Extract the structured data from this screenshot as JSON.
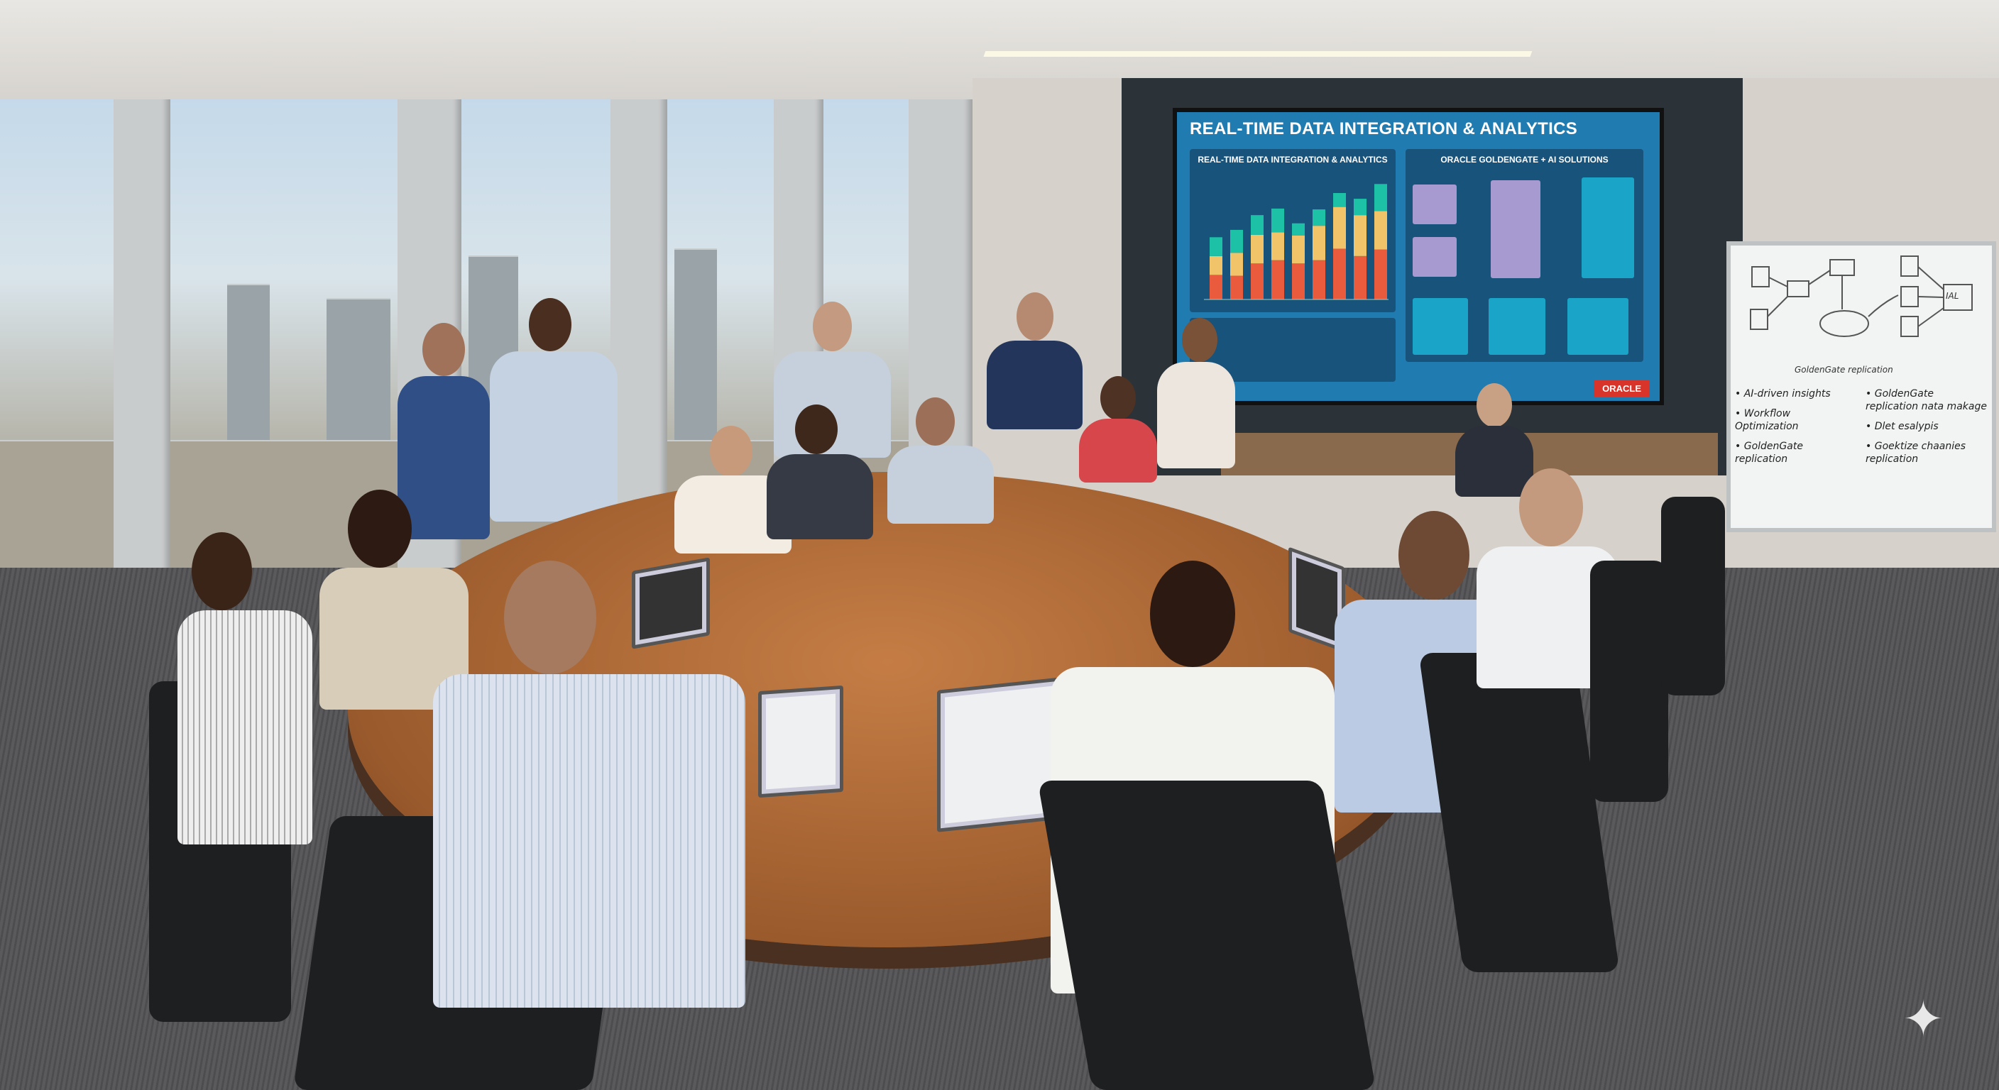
{
  "screen": {
    "title": "REAL-TIME DATA INTEGRATION & ANALYTICS",
    "left_panel_title": "REAL-TIME DATA INTEGRATION & ANALYTICS",
    "right_panel_title": "ORACLE GOLDENGATE + AI SOLUTIONS",
    "logo": "ORACLE",
    "colors": {
      "background": "#1f7bb0",
      "panel": "#18537c",
      "series_red": "#ea5a3c",
      "series_yellow": "#f2c46a",
      "series_teal": "#1cc1a6",
      "logo": "#d8342a"
    },
    "chart_data": {
      "type": "bar",
      "stacked": true,
      "series": [
        {
          "color": "#ea5a3c",
          "values": [
            30,
            29,
            44,
            48,
            44,
            48,
            62,
            53,
            61
          ]
        },
        {
          "color": "#f2c46a",
          "values": [
            23,
            28,
            35,
            34,
            34,
            42,
            51,
            50,
            47
          ]
        },
        {
          "color": "#1cc1a6",
          "values": [
            23,
            28,
            24,
            29,
            15,
            20,
            17,
            20,
            33
          ]
        }
      ]
    }
  },
  "whiteboard": {
    "left_bullets": [
      "AI-driven insights",
      "Workflow Optimization",
      "GoldenGate replication"
    ],
    "right_bullets": [
      "GoldenGate replication nata makage",
      "Dlet esalypis",
      "Goektize chaanies replication"
    ],
    "diagram_labels": {
      "node": "GoldenGate replication",
      "target": "IAL"
    }
  },
  "icons": {
    "watermark": "sparkle-icon"
  }
}
